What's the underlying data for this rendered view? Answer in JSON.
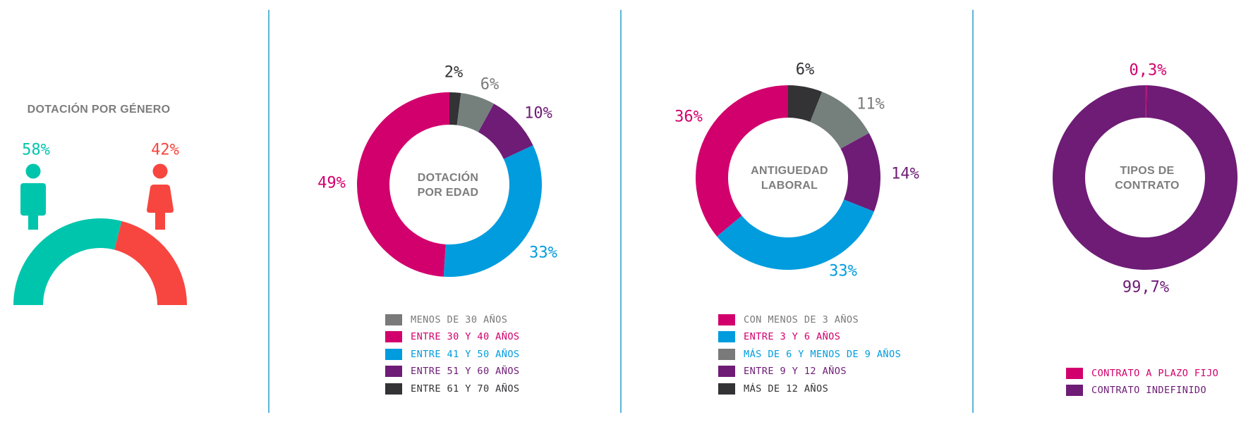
{
  "colors": {
    "teal": "#00c5ad",
    "coral": "#f7463f",
    "magenta": "#d2006d",
    "blue": "#009cde",
    "purple": "#6e1c76",
    "gray": "#75807d",
    "dark": "#333235",
    "divider": "#5db6d8",
    "heading": "#7d7d7d"
  },
  "chart_data": [
    {
      "type": "pie",
      "title": "DOTACIÓN POR GÉNERO",
      "categories": [
        "Hombres",
        "Mujeres"
      ],
      "values": [
        58,
        42
      ],
      "labels": [
        "58%",
        "42%"
      ],
      "colors": [
        "#00c5ad",
        "#f7463f"
      ],
      "icons": [
        "male-icon",
        "female-icon"
      ]
    },
    {
      "type": "pie",
      "title": "DOTACIÓN\nPOR EDAD",
      "title_lines": [
        "DOTACIÓN",
        "POR EDAD"
      ],
      "categories": [
        "MENOS DE 30 AÑOS",
        "ENTRE 30 Y 40 AÑOS",
        "ENTRE 41 Y 50 AÑOS",
        "ENTRE 51 Y 60 AÑOS",
        "ENTRE 61 Y 70 AÑOS"
      ],
      "values": [
        6,
        49,
        33,
        10,
        2
      ],
      "labels": [
        "6%",
        "49%",
        "33%",
        "10%",
        "2%"
      ],
      "colors": [
        "#75807d",
        "#d2006d",
        "#009cde",
        "#6e1c76",
        "#333235"
      ],
      "legend": [
        {
          "label": "MENOS DE 30 AÑOS",
          "swatch": "#7a7a7a",
          "text_color": "#7a7a7a"
        },
        {
          "label": "ENTRE 30 Y 40 AÑOS",
          "swatch": "#d2006d",
          "text_color": "#d2006d"
        },
        {
          "label": "ENTRE 41 Y 50 AÑOS",
          "swatch": "#009cde",
          "text_color": "#009cde"
        },
        {
          "label": "ENTRE 51 Y 60 AÑOS",
          "swatch": "#6e1c76",
          "text_color": "#6e1c76"
        },
        {
          "label": "ENTRE 61 Y 70 AÑOS",
          "swatch": "#333235",
          "text_color": "#333235"
        }
      ]
    },
    {
      "type": "pie",
      "title": "ANTIGUEDAD\nLABORAL",
      "title_lines": [
        "ANTIGUEDAD",
        "LABORAL"
      ],
      "categories": [
        "CON MENOS DE 3 AÑOS",
        "ENTRE 3 Y 6 AÑOS",
        "MÁS DE 6 Y MENOS DE 9 AÑOS",
        "ENTRE 9 Y 12 AÑOS",
        "MÁS DE 12 AÑOS"
      ],
      "values": [
        36,
        33,
        11,
        14,
        6
      ],
      "labels": [
        "36%",
        "33%",
        "11%",
        "14%",
        "6%"
      ],
      "colors": [
        "#d2006d",
        "#009cde",
        "#75807d",
        "#6e1c76",
        "#333235"
      ],
      "legend": [
        {
          "label": "CON MENOS DE 3 AÑOS",
          "swatch": "#d2006d",
          "text_color": "#7a7a7a"
        },
        {
          "label": "ENTRE 3 Y 6 AÑOS",
          "swatch": "#009cde",
          "text_color": "#d2006d"
        },
        {
          "label": "MÁS DE 6 Y MENOS DE 9 AÑOS",
          "swatch": "#7a7a7a",
          "text_color": "#009cde"
        },
        {
          "label": "ENTRE 9 Y 12 AÑOS",
          "swatch": "#6e1c76",
          "text_color": "#6e1c76"
        },
        {
          "label": "MÁS DE 12 AÑOS",
          "swatch": "#333235",
          "text_color": "#333235"
        }
      ]
    },
    {
      "type": "pie",
      "title": "TIPOS DE\nCONTRATO",
      "title_lines": [
        "TIPOS DE",
        "CONTRATO"
      ],
      "categories": [
        "CONTRATO A PLAZO FIJO",
        "CONTRATO INDEFINIDO"
      ],
      "values": [
        0.3,
        99.7
      ],
      "labels": [
        "0,3%",
        "99,7%"
      ],
      "colors": [
        "#d2006d",
        "#6e1c76"
      ],
      "legend": [
        {
          "label": "CONTRATO A PLAZO FIJO",
          "swatch": "#d2006d",
          "text_color": "#d2006d"
        },
        {
          "label": "CONTRATO INDEFINIDO",
          "swatch": "#6e1c76",
          "text_color": "#6e1c76"
        }
      ]
    }
  ]
}
